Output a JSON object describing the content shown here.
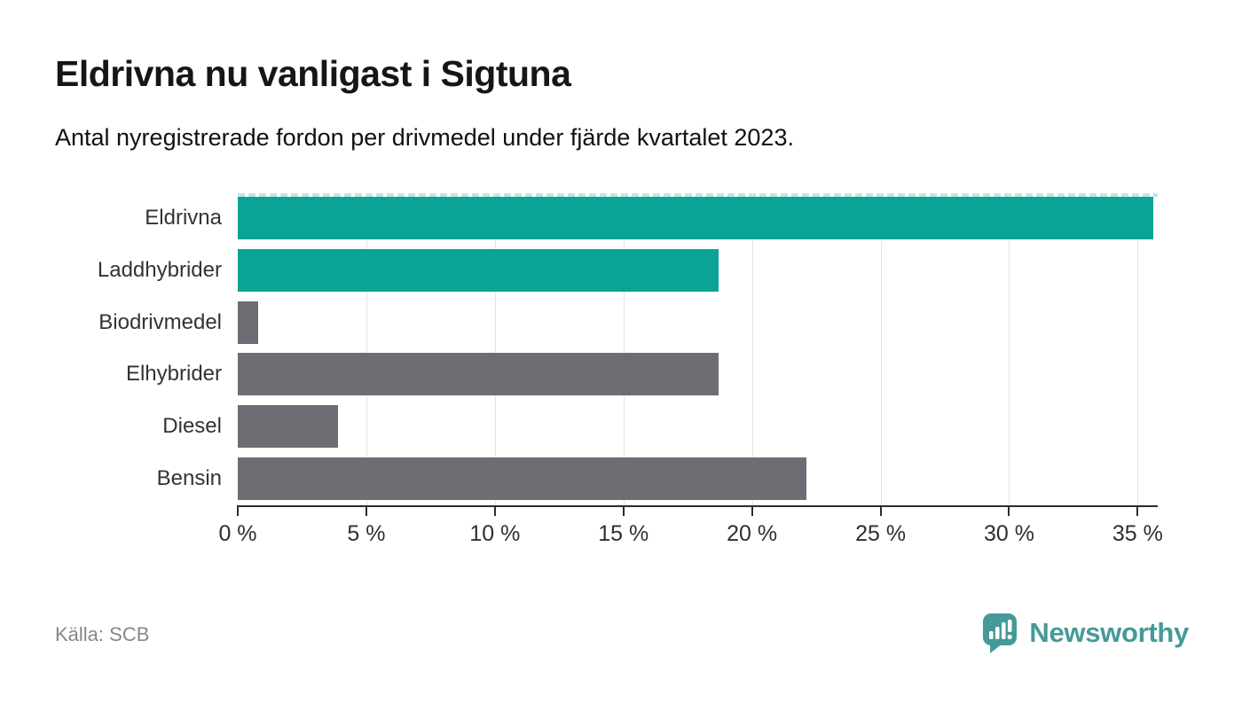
{
  "header": {
    "title": "Eldrivna nu vanligast i Sigtuna",
    "subtitle": "Antal nyregistrerade fordon per drivmedel under fjärde kvartalet 2023."
  },
  "chart_data": {
    "type": "bar",
    "orientation": "horizontal",
    "title": "Eldrivna nu vanligast i Sigtuna",
    "subtitle": "Antal nyregistrerade fordon per drivmedel under fjärde kvartalet 2023.",
    "categories": [
      "Eldrivna",
      "Laddhybrider",
      "Biodrivmedel",
      "Elhybrider",
      "Diesel",
      "Bensin"
    ],
    "values": [
      35.6,
      18.7,
      0.8,
      18.7,
      3.9,
      22.1
    ],
    "unit": "%",
    "xlim": [
      0,
      35.78
    ],
    "x_ticks": [
      0,
      5,
      10,
      15,
      20,
      25,
      30,
      35
    ],
    "x_tick_labels": [
      "0 %",
      "5 %",
      "10 %",
      "15 %",
      "20 %",
      "25 %",
      "30 %",
      "35 %"
    ],
    "grid": "vertical-on",
    "legend": "none",
    "bar_colors": [
      "#0aa396",
      "#0aa396",
      "#6e6d73",
      "#6e6d73",
      "#6e6d73",
      "#6e6d73"
    ],
    "top_reference_line": "dashed pale teal at top of plot area"
  },
  "footer": {
    "source": "Källa: SCB",
    "brand": "Newsworthy"
  },
  "colors": {
    "accent_teal": "#0aa396",
    "neutral_gray": "#6e6d73",
    "gridline": "#e4e4e4",
    "axis": "#2c2c2c",
    "logo_teal": "#459a99",
    "dashed_line": "#bfe7e4",
    "source_text": "#878787"
  },
  "icons": {
    "logo": "newsworthy-speech-bubble-bar-chart-icon"
  }
}
